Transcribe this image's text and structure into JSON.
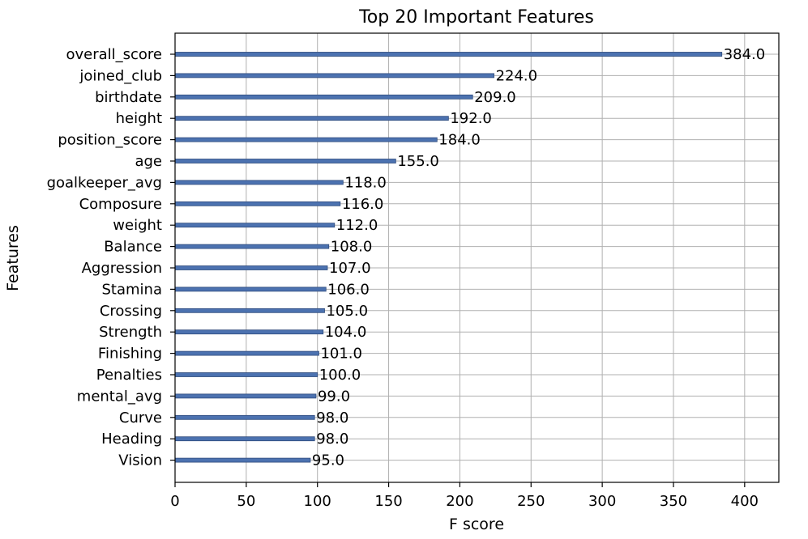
{
  "chart_data": {
    "type": "bar",
    "orientation": "horizontal",
    "title": "Top 20 Important Features",
    "xlabel": "F score",
    "ylabel": "Features",
    "xlim": [
      0,
      424
    ],
    "xticks": [
      0,
      50,
      100,
      150,
      200,
      250,
      300,
      350,
      400
    ],
    "grid": true,
    "categories": [
      "overall_score",
      "joined_club",
      "birthdate",
      "height",
      "position_score",
      "age",
      "goalkeeper_avg",
      "Composure",
      "weight",
      "Balance",
      "Aggression",
      "Stamina",
      "Crossing",
      "Strength",
      "Finishing",
      "Penalties",
      "mental_avg",
      "Curve",
      "Heading",
      "Vision"
    ],
    "values": [
      384,
      224,
      209,
      192,
      184,
      155,
      118,
      116,
      112,
      108,
      107,
      106,
      105,
      104,
      101,
      100,
      99,
      98,
      98,
      95
    ],
    "value_labels": [
      "384.0",
      "224.0",
      "209.0",
      "192.0",
      "184.0",
      "155.0",
      "118.0",
      "116.0",
      "112.0",
      "108.0",
      "107.0",
      "106.0",
      "105.0",
      "104.0",
      "101.0",
      "100.0",
      "99.0",
      "98.0",
      "98.0",
      "95.0"
    ],
    "bar_color": "#4c72b0"
  }
}
